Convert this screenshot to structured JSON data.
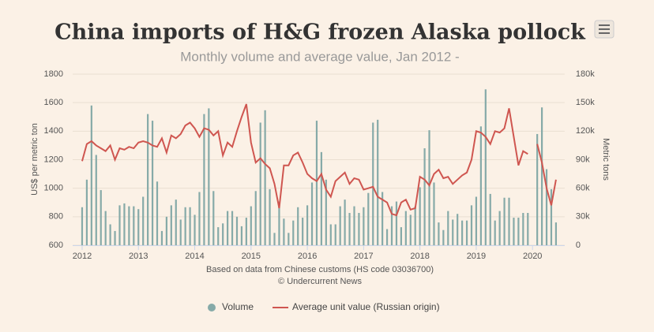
{
  "chart_data": {
    "type": "bar-line",
    "title": "China imports of H&G frozen Alaska pollock",
    "subtitle": "Monthly volume and average value, Jan 2012 -",
    "ylabel": "US$ per metric ton",
    "y2label": "Metric tons",
    "source": [
      "Based on data from Chinese customs (HS code 03036700)",
      "© Undercurrent News"
    ],
    "categories": [
      "2012",
      null,
      null,
      null,
      null,
      null,
      null,
      null,
      null,
      null,
      null,
      null,
      "2013",
      null,
      null,
      null,
      null,
      null,
      null,
      null,
      null,
      null,
      null,
      null,
      "2014",
      null,
      null,
      null,
      null,
      null,
      null,
      null,
      null,
      null,
      null,
      null,
      "2015",
      null,
      null,
      null,
      null,
      null,
      null,
      null,
      null,
      null,
      null,
      null,
      "2016",
      null,
      null,
      null,
      null,
      null,
      null,
      null,
      null,
      null,
      null,
      null,
      "2017",
      null,
      null,
      null,
      null,
      null,
      null,
      null,
      null,
      null,
      null,
      null,
      "2018",
      null,
      null,
      null,
      null,
      null,
      null,
      null,
      null,
      null,
      null,
      null,
      "2019",
      null,
      null,
      null,
      null,
      null,
      null,
      null,
      null,
      null,
      null,
      null,
      "2020",
      null,
      null,
      null,
      null,
      null
    ],
    "series": [
      {
        "name": "Volume",
        "type": "bar",
        "axis": "y2",
        "color": "#86aaa8",
        "values": [
          40000,
          69000,
          147000,
          95000,
          58000,
          36000,
          22000,
          15000,
          42000,
          44000,
          41000,
          41000,
          38000,
          51000,
          138000,
          131000,
          67000,
          15000,
          30000,
          42000,
          48000,
          27000,
          40000,
          40000,
          32000,
          56000,
          138000,
          144000,
          57000,
          19000,
          23000,
          36000,
          36000,
          30000,
          20000,
          29000,
          41000,
          57000,
          129000,
          142000,
          59000,
          13000,
          46000,
          28000,
          13000,
          26000,
          40000,
          29000,
          42000,
          66000,
          131000,
          98000,
          69000,
          22000,
          22000,
          41000,
          48000,
          34000,
          41000,
          34000,
          40000,
          55000,
          129000,
          132000,
          56000,
          17000,
          41000,
          46000,
          19000,
          36000,
          32000,
          41000,
          61000,
          102000,
          121000,
          66000,
          24000,
          16000,
          36000,
          27000,
          33000,
          26000,
          26000,
          42000,
          51000,
          125000,
          164000,
          54000,
          26000,
          36000,
          50000,
          50000,
          29000,
          29000,
          34000,
          34000,
          null,
          117000,
          145000,
          80000,
          59000,
          24000
        ]
      },
      {
        "name": "Average unit value (Russian origin)",
        "type": "line",
        "color": "#cf5650",
        "values": [
          1190,
          1310,
          1330,
          1300,
          1280,
          1260,
          1300,
          1200,
          1280,
          1270,
          1290,
          1280,
          1320,
          1330,
          1320,
          1300,
          1290,
          1350,
          1250,
          1370,
          1350,
          1380,
          1440,
          1460,
          1420,
          1360,
          1420,
          1410,
          1370,
          1400,
          1230,
          1320,
          1290,
          1400,
          1500,
          1590,
          1320,
          1180,
          1210,
          1170,
          1140,
          1030,
          860,
          1160,
          1160,
          1230,
          1250,
          1180,
          1100,
          1070,
          1050,
          1100,
          990,
          940,
          1050,
          1080,
          1110,
          1030,
          1070,
          1060,
          990,
          1000,
          1010,
          940,
          920,
          900,
          820,
          810,
          900,
          920,
          850,
          860,
          1080,
          1060,
          1020,
          1100,
          1130,
          1070,
          1080,
          1030,
          1060,
          1090,
          1110,
          1200,
          1400,
          1390,
          1360,
          1310,
          1400,
          1390,
          1420,
          1560,
          1360,
          1160,
          1260,
          1240,
          null,
          1310,
          1180,
          1000,
          880,
          1060
        ]
      }
    ],
    "ylim": [
      600,
      1800
    ],
    "yticks": [
      600,
      800,
      1000,
      1200,
      1400,
      1600,
      1800
    ],
    "y2lim": [
      0,
      180000
    ],
    "y2ticks": [
      0,
      {
        "value": 30000,
        "label": "30k"
      },
      {
        "value": 60000,
        "label": "60k"
      },
      {
        "value": 90000,
        "label": "90k"
      },
      {
        "value": 120000,
        "label": "120k"
      },
      {
        "value": 150000,
        "label": "150k"
      },
      {
        "value": 180000,
        "label": "180k"
      }
    ],
    "grid": true,
    "legend": "bottom"
  }
}
